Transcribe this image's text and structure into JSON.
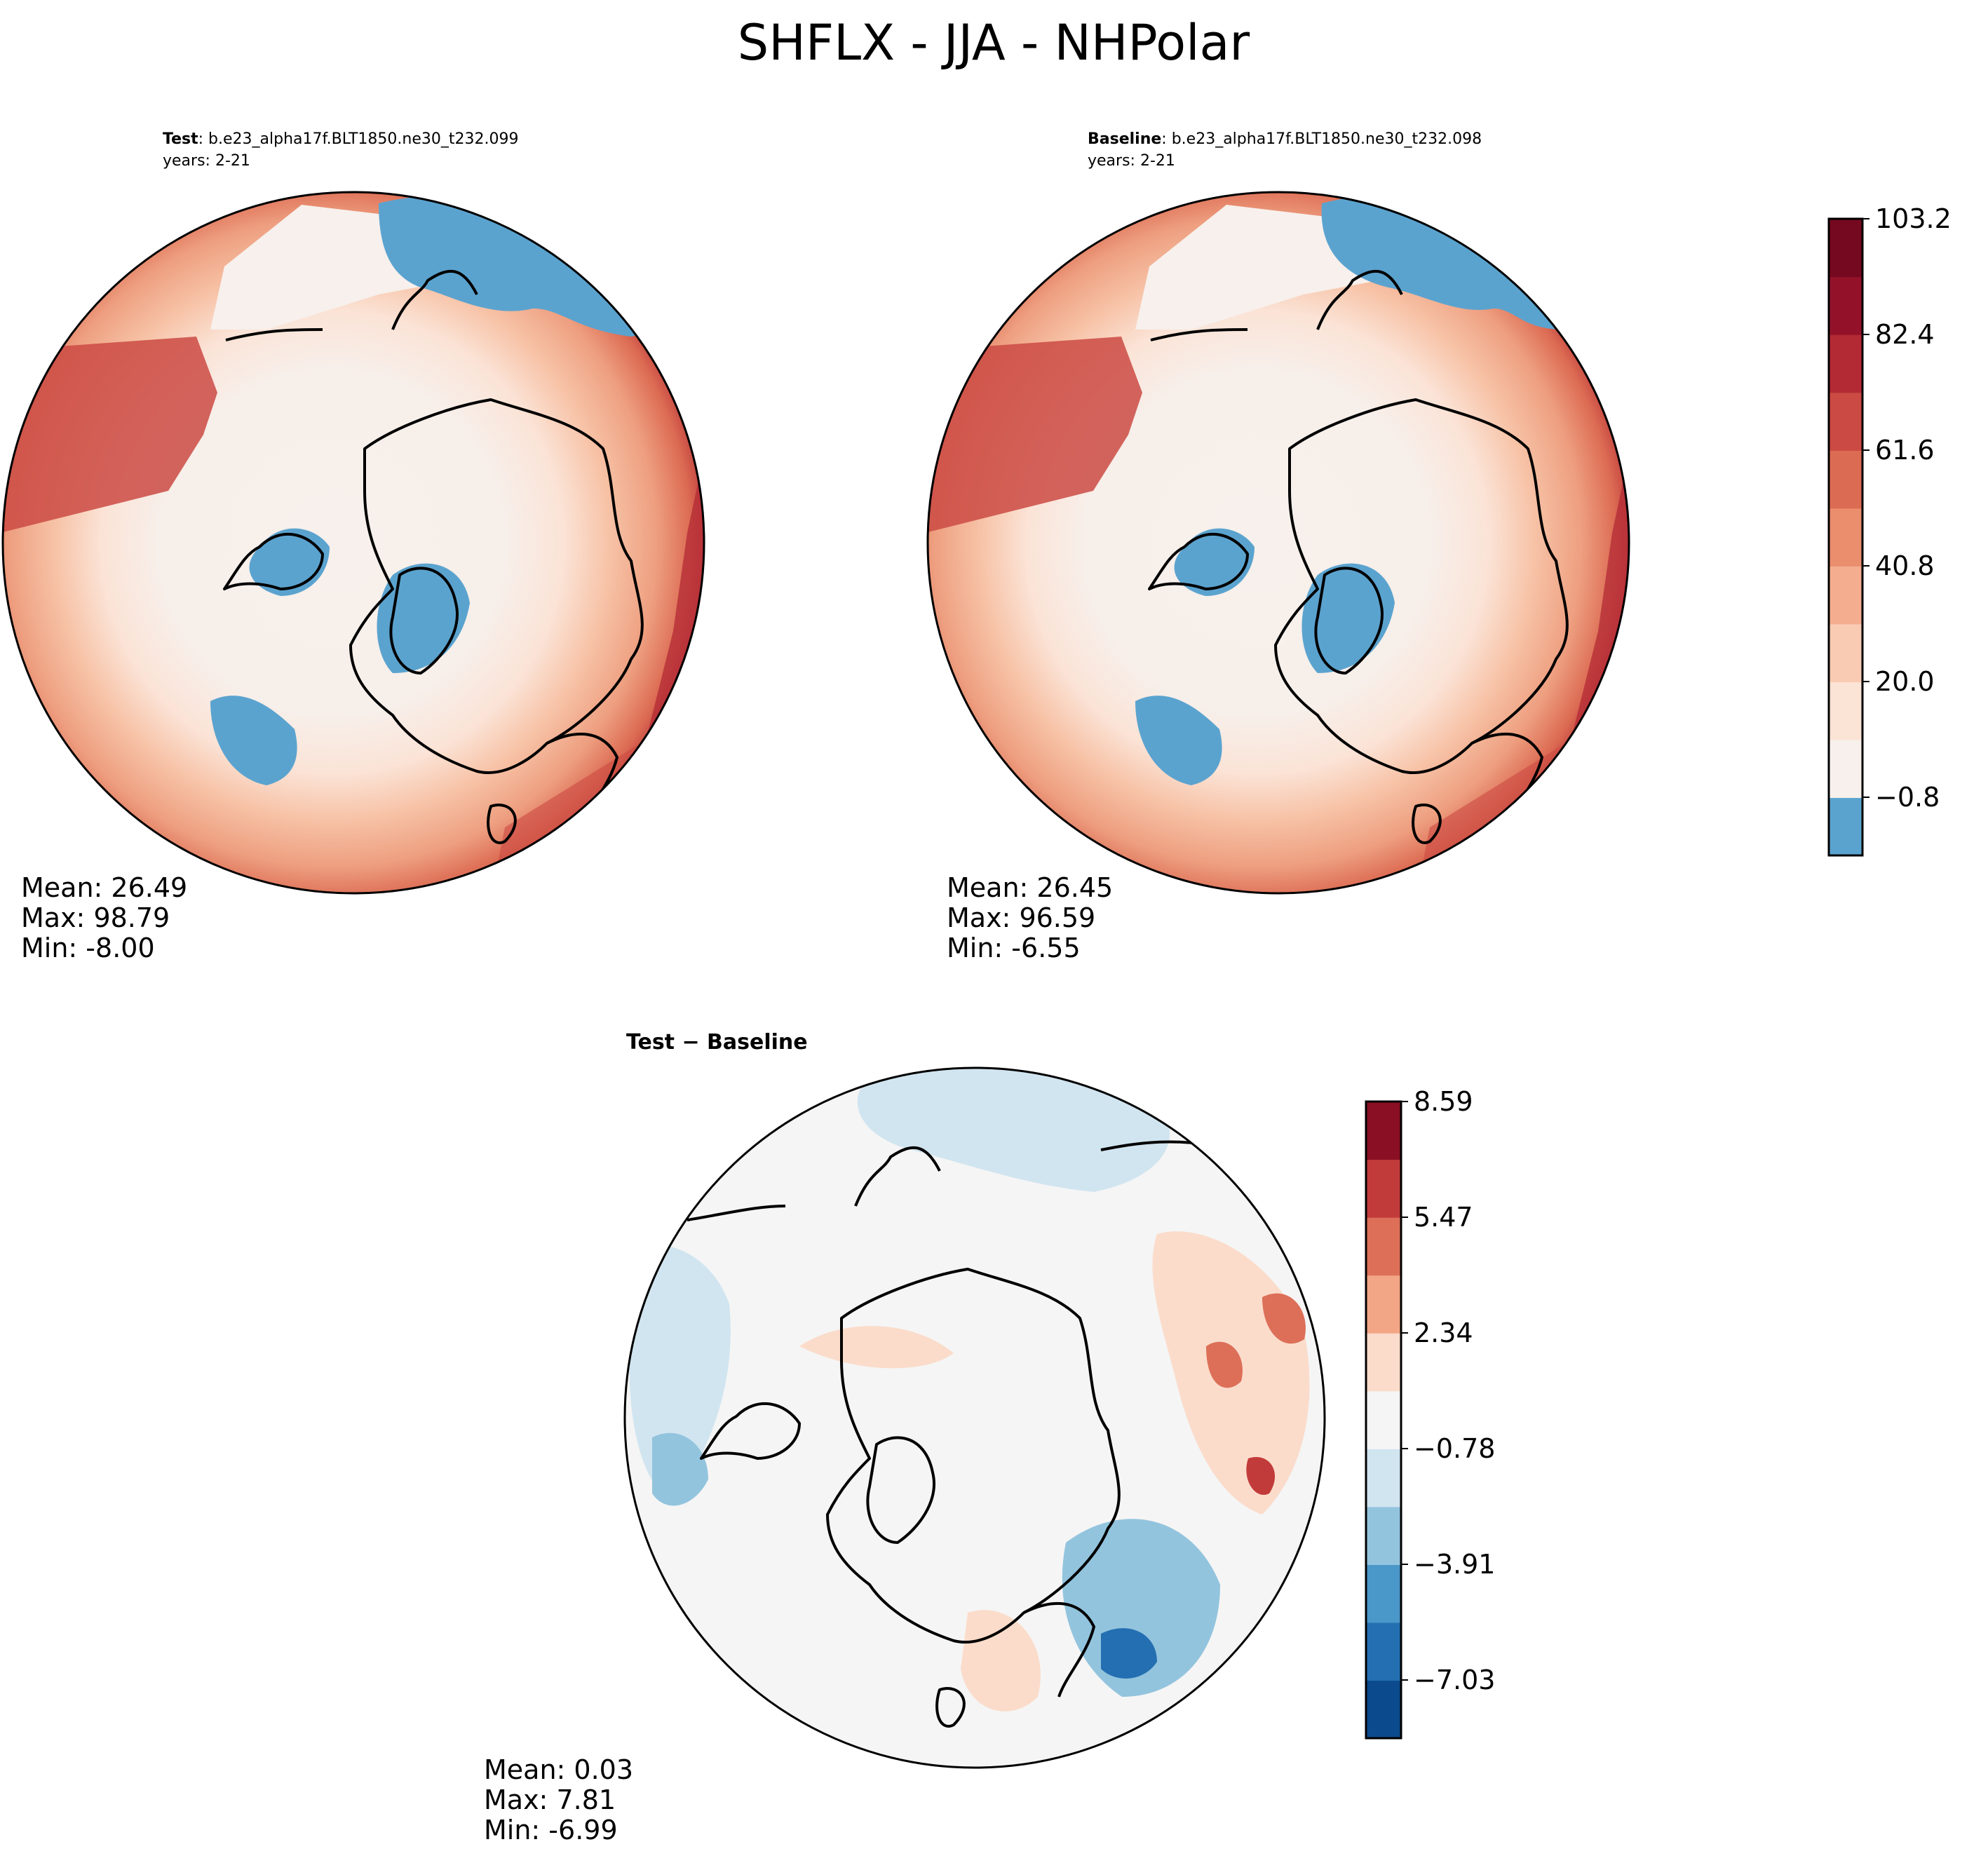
{
  "figure": {
    "title": "SHFLX - JJA - NHPolar"
  },
  "panels": {
    "test": {
      "label_bold": "Test",
      "label_rest": ": b.e23_alpha17f.BLT1850.ne30_t232.099",
      "years": "years: 2-21",
      "stats": {
        "mean": "Mean: 26.49",
        "max": "Max: 98.79",
        "min": "Min: -8.00"
      }
    },
    "baseline": {
      "label_bold": "Baseline",
      "label_rest": ": b.e23_alpha17f.BLT1850.ne30_t232.098",
      "years": "years: 2-21",
      "stats": {
        "mean": "Mean: 26.45",
        "max": "Max: 96.59",
        "min": "Min: -6.55"
      }
    },
    "diff": {
      "title": "Test − Baseline",
      "stats": {
        "mean": "Mean:  0.03",
        "max": "Max:  7.81",
        "min": "Min: -6.99"
      }
    }
  },
  "colors": {
    "main_levels": [
      "#5ba3cf",
      "#f7f0ec",
      "#fbe3d6",
      "#f9cbb3",
      "#f4ad8f",
      "#ea8e6d",
      "#dc6b53",
      "#cb4a43",
      "#b32a34",
      "#93122a",
      "#75091f"
    ],
    "diff_levels": [
      "#0b4a8c",
      "#246fb1",
      "#4a97c9",
      "#93c4de",
      "#d1e5f0",
      "#f5f5f5",
      "#fbdccb",
      "#f3a685",
      "#dd6f58",
      "#c23b3b",
      "#8a0f24"
    ]
  },
  "chart_data": [
    {
      "type": "contour-map",
      "projection": "north polar stereographic",
      "title": "Test: b.e23_alpha17f.BLT1850.ne30_t232.099",
      "colorbar": {
        "ticks": [
          "103.2",
          "82.4",
          "61.6",
          "40.8",
          "20.0",
          "−0.8"
        ],
        "range": [
          -11.2,
          103.2
        ]
      },
      "stats": {
        "mean": 26.49,
        "max": 98.79,
        "min": -8.0
      }
    },
    {
      "type": "contour-map",
      "projection": "north polar stereographic",
      "title": "Baseline: b.e23_alpha17f.BLT1850.ne30_t232.098",
      "colorbar": {
        "ticks": [
          "103.2",
          "82.4",
          "61.6",
          "40.8",
          "20.0",
          "−0.8"
        ],
        "range": [
          -11.2,
          103.2
        ]
      },
      "stats": {
        "mean": 26.45,
        "max": 96.59,
        "min": -6.55
      }
    },
    {
      "type": "contour-map",
      "projection": "north polar stereographic",
      "title": "Test − Baseline",
      "colorbar": {
        "ticks": [
          "8.59",
          "5.47",
          "2.34",
          "−0.78",
          "−3.91",
          "−7.03"
        ],
        "range": [
          -10.15,
          8.59
        ]
      },
      "stats": {
        "mean": 0.03,
        "max": 7.81,
        "min": -6.99
      }
    }
  ]
}
